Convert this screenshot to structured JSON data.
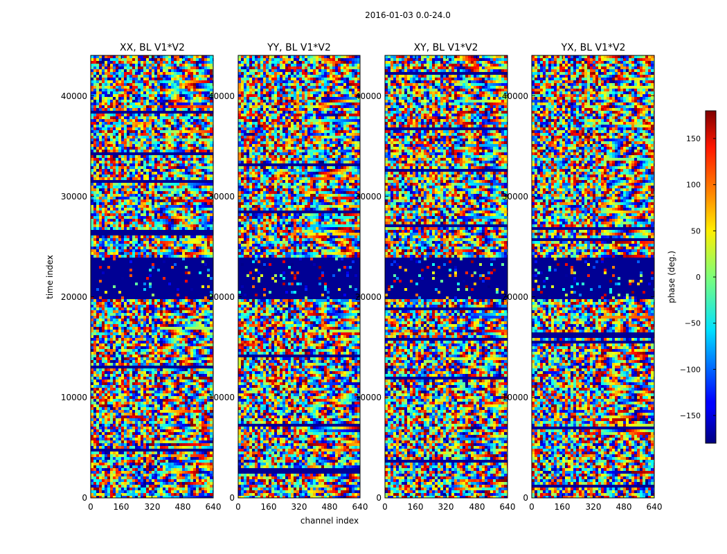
{
  "chart_data": {
    "type": "heatmap",
    "suptitle": "2016-01-03 0.0-24.0",
    "xlabel": "channel index",
    "ylabel": "time index",
    "xlim": [
      0,
      640
    ],
    "ylim": [
      0,
      44000
    ],
    "xticks": [
      "0",
      "160",
      "320",
      "480",
      "640"
    ],
    "yticks": [
      "0",
      "10000",
      "20000",
      "30000",
      "40000"
    ],
    "panels": [
      {
        "title": "XX, BL V1*V2"
      },
      {
        "title": "YY, BL V1*V2"
      },
      {
        "title": "XY, BL V1*V2"
      },
      {
        "title": "YX, BL V1*V2"
      }
    ],
    "colorbar": {
      "label": "phase (deg.)",
      "range": [
        -180,
        180
      ],
      "ticks": [
        "150",
        "100",
        "50",
        "0",
        "−50",
        "−100",
        "−150"
      ],
      "colormap": "jet"
    },
    "flagged_time_band": [
      19800,
      23800
    ]
  }
}
